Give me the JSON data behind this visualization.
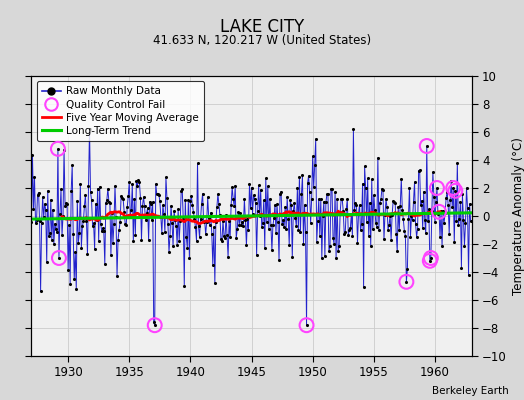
{
  "title": "LAKE CITY",
  "subtitle": "41.633 N, 120.217 W (United States)",
  "attribution": "Berkeley Earth",
  "ylabel": "Temperature Anomaly (°C)",
  "ylim": [
    -10,
    10
  ],
  "xlim": [
    1927.0,
    1963.0
  ],
  "xticks": [
    1930,
    1935,
    1940,
    1945,
    1950,
    1955,
    1960
  ],
  "yticks": [
    -10,
    -8,
    -6,
    -4,
    -2,
    0,
    2,
    4,
    6,
    8,
    10
  ],
  "fig_bg": "#d8d8d8",
  "plot_bg": "#f0f0f0",
  "grid_color": "#cccccc",
  "line_color": "#2222cc",
  "marker_color": "black",
  "qc_fail_color": "#ff44ff",
  "moving_avg_color": "red",
  "trend_color": "#00cc00",
  "years_start": 1927,
  "years_end": 1962,
  "seed": 99,
  "qc_points": [
    [
      1929,
      2,
      4.8
    ],
    [
      1929,
      3,
      -3.0
    ],
    [
      1937,
      1,
      -7.8
    ],
    [
      1949,
      6,
      -7.8
    ],
    [
      1957,
      8,
      -4.7
    ],
    [
      1959,
      4,
      5.0
    ],
    [
      1959,
      7,
      -3.2
    ],
    [
      1959,
      8,
      -3.0
    ],
    [
      1960,
      2,
      2.0
    ],
    [
      1960,
      4,
      0.3
    ],
    [
      1961,
      6,
      2.0
    ],
    [
      1961,
      8,
      1.8
    ]
  ]
}
